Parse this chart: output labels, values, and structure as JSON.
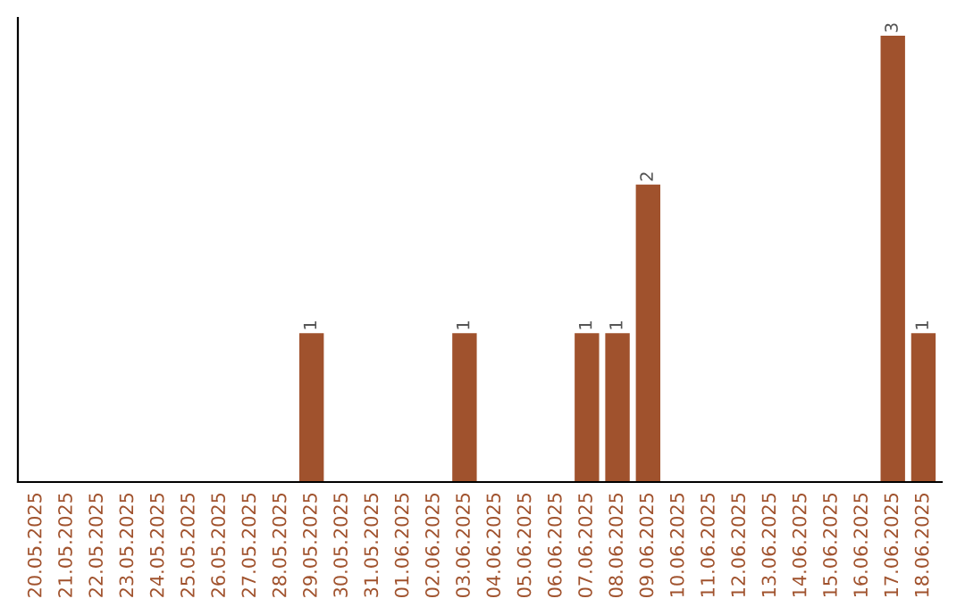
{
  "chart_data": {
    "type": "bar",
    "categories": [
      "20.05.2025",
      "21.05.2025",
      "22.05.2025",
      "23.05.2025",
      "24.05.2025",
      "25.05.2025",
      "26.05.2025",
      "27.05.2025",
      "28.05.2025",
      "29.05.2025",
      "30.05.2025",
      "31.05.2025",
      "01.06.2025",
      "02.06.2025",
      "03.06.2025",
      "04.06.2025",
      "05.06.2025",
      "06.06.2025",
      "07.06.2025",
      "08.06.2025",
      "09.06.2025",
      "10.06.2025",
      "11.06.2025",
      "12.06.2025",
      "13.06.2025",
      "14.06.2025",
      "15.06.2025",
      "16.06.2025",
      "17.06.2025",
      "18.06.2025"
    ],
    "values": [
      0,
      0,
      0,
      0,
      0,
      0,
      0,
      0,
      0,
      1,
      0,
      0,
      0,
      0,
      1,
      0,
      0,
      0,
      1,
      1,
      2,
      0,
      0,
      0,
      0,
      0,
      0,
      0,
      3,
      1
    ],
    "value_labels": [
      null,
      null,
      null,
      null,
      null,
      null,
      null,
      null,
      null,
      "1",
      null,
      null,
      null,
      null,
      "1",
      null,
      null,
      null,
      "1",
      "1",
      "2",
      null,
      null,
      null,
      null,
      null,
      null,
      null,
      "3",
      "1"
    ],
    "color": "#a0522d",
    "tick_labels": "x",
    "grid": false,
    "legend": false
  }
}
